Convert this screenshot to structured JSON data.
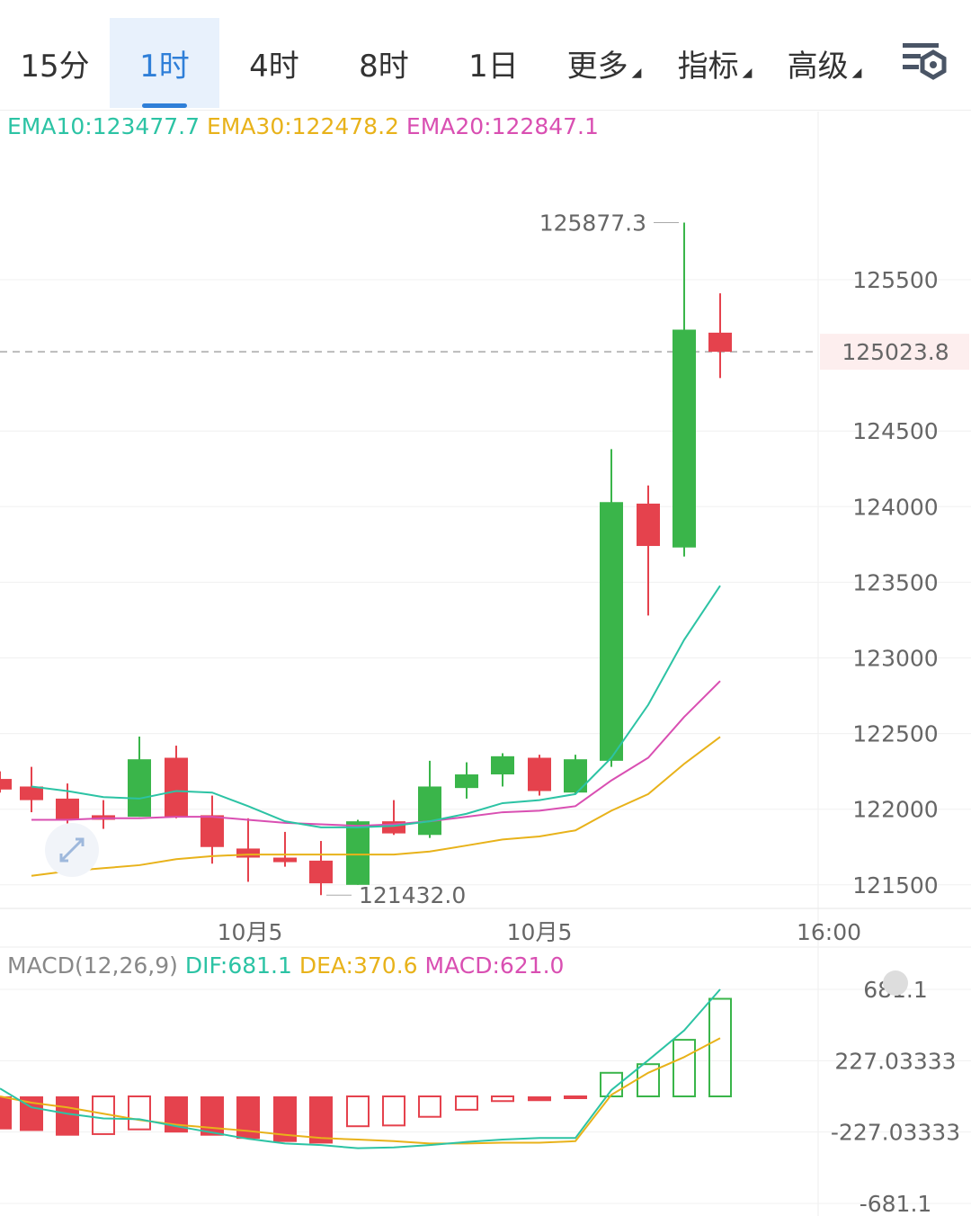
{
  "tabs": [
    {
      "label": "15分",
      "active": false
    },
    {
      "label": "1时",
      "active": true
    },
    {
      "label": "4时",
      "active": false
    },
    {
      "label": "8时",
      "active": false
    },
    {
      "label": "1日",
      "active": false
    },
    {
      "label": "更多",
      "active": false,
      "dropdown": true
    },
    {
      "label": "指标",
      "active": false,
      "dropdown": true
    },
    {
      "label": "高级",
      "active": false,
      "dropdown": true
    }
  ],
  "toolbar": {
    "filter_icon": "settings-filter-icon"
  },
  "colors": {
    "up": "#3ab54a",
    "down": "#e5424d",
    "ema10": "#2cc3a4",
    "ema30": "#e8b21a",
    "ema20": "#d94fb2",
    "dif": "#2cc3a4",
    "dea": "#e8b21a",
    "macd": "#d94fb2",
    "price_line": "#e5424d"
  },
  "legend": {
    "ema10": "EMA10:123477.7",
    "ema30": "EMA30:122478.2",
    "ema20": "EMA20:122847.1"
  },
  "macd_legend": {
    "title": "MACD(12,26,9)",
    "dif": "DIF:681.1",
    "dea": "DEA:370.6",
    "macd": "MACD:621.0"
  },
  "chart_data": [
    {
      "type": "candlestick",
      "ylim": [
        121200,
        126100
      ],
      "yticks": [
        "125500",
        "124500",
        "124000",
        "123500",
        "123000",
        "122500",
        "122000",
        "121500"
      ],
      "ytick_values": [
        125500,
        124500,
        124000,
        123500,
        123000,
        122500,
        122000,
        121500
      ],
      "xticks": [
        "10月5",
        "10月5",
        "16:00"
      ],
      "xtick_candle_index": [
        6,
        14,
        22
      ],
      "current_price": 125023.8,
      "current_price_label": "125023.8",
      "high_label": "125877.3",
      "low_label": "121432.0",
      "high_value": 125877.3,
      "low_value": 121432.0,
      "high_candle": 18,
      "low_candle": 8,
      "candles": [
        {
          "o": 122200,
          "h": 122250,
          "l": 122110,
          "c": 122130
        },
        {
          "o": 122150,
          "h": 122280,
          "l": 121980,
          "c": 122060
        },
        {
          "o": 122070,
          "h": 122170,
          "l": 121880,
          "c": 121930
        },
        {
          "o": 121960,
          "h": 122060,
          "l": 121870,
          "c": 121930
        },
        {
          "o": 121950,
          "h": 122480,
          "l": 121950,
          "c": 122330
        },
        {
          "o": 122340,
          "h": 122420,
          "l": 121940,
          "c": 121950
        },
        {
          "o": 121960,
          "h": 122090,
          "l": 121640,
          "c": 121750
        },
        {
          "o": 121740,
          "h": 121940,
          "l": 121520,
          "c": 121680
        },
        {
          "o": 121680,
          "h": 121850,
          "l": 121620,
          "c": 121650
        },
        {
          "o": 121660,
          "h": 121790,
          "l": 121432,
          "c": 121510
        },
        {
          "o": 121500,
          "h": 121930,
          "l": 121500,
          "c": 121920
        },
        {
          "o": 121920,
          "h": 122060,
          "l": 121830,
          "c": 121840
        },
        {
          "o": 121830,
          "h": 122320,
          "l": 121810,
          "c": 122150
        },
        {
          "o": 122140,
          "h": 122310,
          "l": 122070,
          "c": 122230
        },
        {
          "o": 122230,
          "h": 122370,
          "l": 122150,
          "c": 122350
        },
        {
          "o": 122340,
          "h": 122360,
          "l": 122090,
          "c": 122120
        },
        {
          "o": 122110,
          "h": 122360,
          "l": 122100,
          "c": 122330
        },
        {
          "o": 122320,
          "h": 124380,
          "l": 122280,
          "c": 124030
        },
        {
          "o": 124020,
          "h": 124140,
          "l": 123280,
          "c": 123740
        },
        {
          "o": 123730,
          "h": 125877.3,
          "l": 123670,
          "c": 125170
        },
        {
          "o": 125150,
          "h": 125410,
          "l": 124850,
          "c": 125023.8
        }
      ],
      "ema10": [
        122150,
        122120,
        122080,
        122070,
        122120,
        122110,
        122020,
        121920,
        121880,
        121880,
        121890,
        121920,
        121970,
        122040,
        122060,
        122100,
        122340,
        122690,
        123120,
        123477.7
      ],
      "ema20": [
        121930,
        121930,
        121940,
        121940,
        121950,
        121950,
        121930,
        121910,
        121900,
        121890,
        121900,
        121920,
        121950,
        121980,
        121990,
        122020,
        122190,
        122340,
        122610,
        122847.1
      ],
      "ema30": [
        121560,
        121590,
        121610,
        121630,
        121670,
        121690,
        121700,
        121700,
        121700,
        121700,
        121700,
        121720,
        121760,
        121800,
        121820,
        121860,
        121990,
        122100,
        122300,
        122478.2
      ],
      "ema_start_index": 1
    },
    {
      "type": "bar+line",
      "title": "MACD(12,26,9)",
      "yticks": [
        "681.1",
        "227.03333",
        "-227.03333",
        "-681.1"
      ],
      "ytick_values": [
        681.1,
        227.03333,
        -227.03333,
        -681.1
      ],
      "ylim": [
        -681.1,
        681.1
      ],
      "histogram": [
        -210,
        -220,
        -250,
        -240,
        -210,
        -230,
        -250,
        -270,
        -290,
        -300,
        -190,
        -185,
        -130,
        -85,
        -30,
        -30,
        -8,
        150,
        205,
        360,
        621.0
      ],
      "dif": [
        50,
        -70,
        -110,
        -140,
        -145,
        -190,
        -230,
        -270,
        -300,
        -310,
        -330,
        -325,
        -310,
        -290,
        -275,
        -265,
        -265,
        40,
        230,
        420,
        681.1
      ],
      "dea": [
        0,
        -40,
        -70,
        -110,
        -150,
        -180,
        -200,
        -220,
        -245,
        -265,
        -275,
        -285,
        -300,
        -300,
        -295,
        -295,
        -285,
        10,
        150,
        250,
        370.6
      ]
    }
  ]
}
